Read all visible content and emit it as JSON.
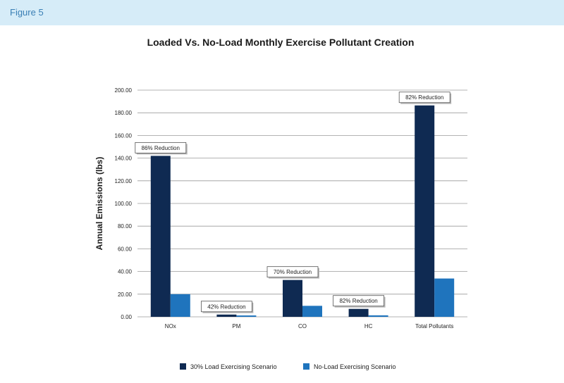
{
  "figure_label": "Figure 5",
  "colors": {
    "header_bg": "#d6ecf8",
    "series1": "#0f2a52",
    "series2": "#1f74bd",
    "grid": "#9a9a9a"
  },
  "chart_data": {
    "type": "bar",
    "title": "Loaded Vs. No-Load Monthly Exercise Pollutant Creation",
    "ylabel": "Annual Emissions (lbs)",
    "xlabel": "",
    "categories": [
      "NOx",
      "PM",
      "CO",
      "HC",
      "Total Pollutants"
    ],
    "series": [
      {
        "name": "30% Load Exercising Scenario",
        "color": "#0f2a52",
        "values": [
          142.0,
          2.0,
          32.5,
          7.0,
          186.5
        ]
      },
      {
        "name": "No-Load Exercising Scenario",
        "color": "#1f74bd",
        "values": [
          20.0,
          1.2,
          9.7,
          1.3,
          33.8
        ]
      }
    ],
    "ylim": [
      0,
      200
    ],
    "yticks": [
      "0.00",
      "20.00",
      "40.00",
      "60.00",
      "80.00",
      "100.00",
      "120.00",
      "140.00",
      "160.00",
      "180.00",
      "200.00"
    ],
    "annotations": [
      "86% Reduction",
      "42% Reduction",
      "70% Reduction",
      "82% Reduction",
      "82% Reduction"
    ],
    "grid": true,
    "legend_position": "bottom"
  }
}
